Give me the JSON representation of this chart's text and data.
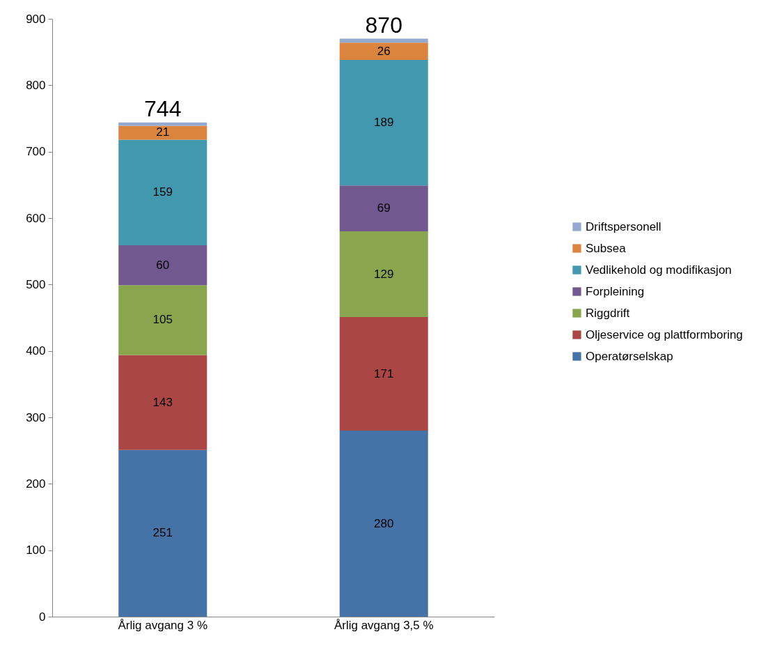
{
  "chart_data": {
    "type": "bar",
    "stacked": true,
    "categories": [
      "Årlig avgang 3 %",
      "Årlig avgang 3,5 %"
    ],
    "series": [
      {
        "name": "Operatørselskap",
        "color": "#4572a7",
        "values": [
          251,
          280
        ],
        "value_labels": [
          "251",
          "280"
        ]
      },
      {
        "name": "Oljeservice og plattformboring",
        "color": "#aa4643",
        "values": [
          143,
          171
        ],
        "value_labels": [
          "143",
          "171"
        ]
      },
      {
        "name": "Riggdrift",
        "color": "#89a54e",
        "values": [
          105,
          129
        ],
        "value_labels": [
          "105",
          "129"
        ]
      },
      {
        "name": "Forpleining",
        "color": "#71588f",
        "values": [
          60,
          69
        ],
        "value_labels": [
          "60",
          "69"
        ]
      },
      {
        "name": "Vedlikehold og modifikasjon",
        "color": "#4198af",
        "values": [
          159,
          189
        ],
        "value_labels": [
          "159",
          "189"
        ]
      },
      {
        "name": "Subsea",
        "color": "#db843d",
        "values": [
          21,
          26
        ],
        "value_labels": [
          "21",
          "26"
        ]
      },
      {
        "name": "Driftspersonell",
        "color": "#93a9cf",
        "values": [
          5,
          6
        ],
        "value_labels": [
          null,
          null
        ]
      }
    ],
    "totals": [
      "744",
      "870"
    ],
    "ylim": [
      0,
      900
    ],
    "yticks": [
      0,
      100,
      200,
      300,
      400,
      500,
      600,
      700,
      800,
      900
    ],
    "grid": false,
    "legend": "right"
  }
}
